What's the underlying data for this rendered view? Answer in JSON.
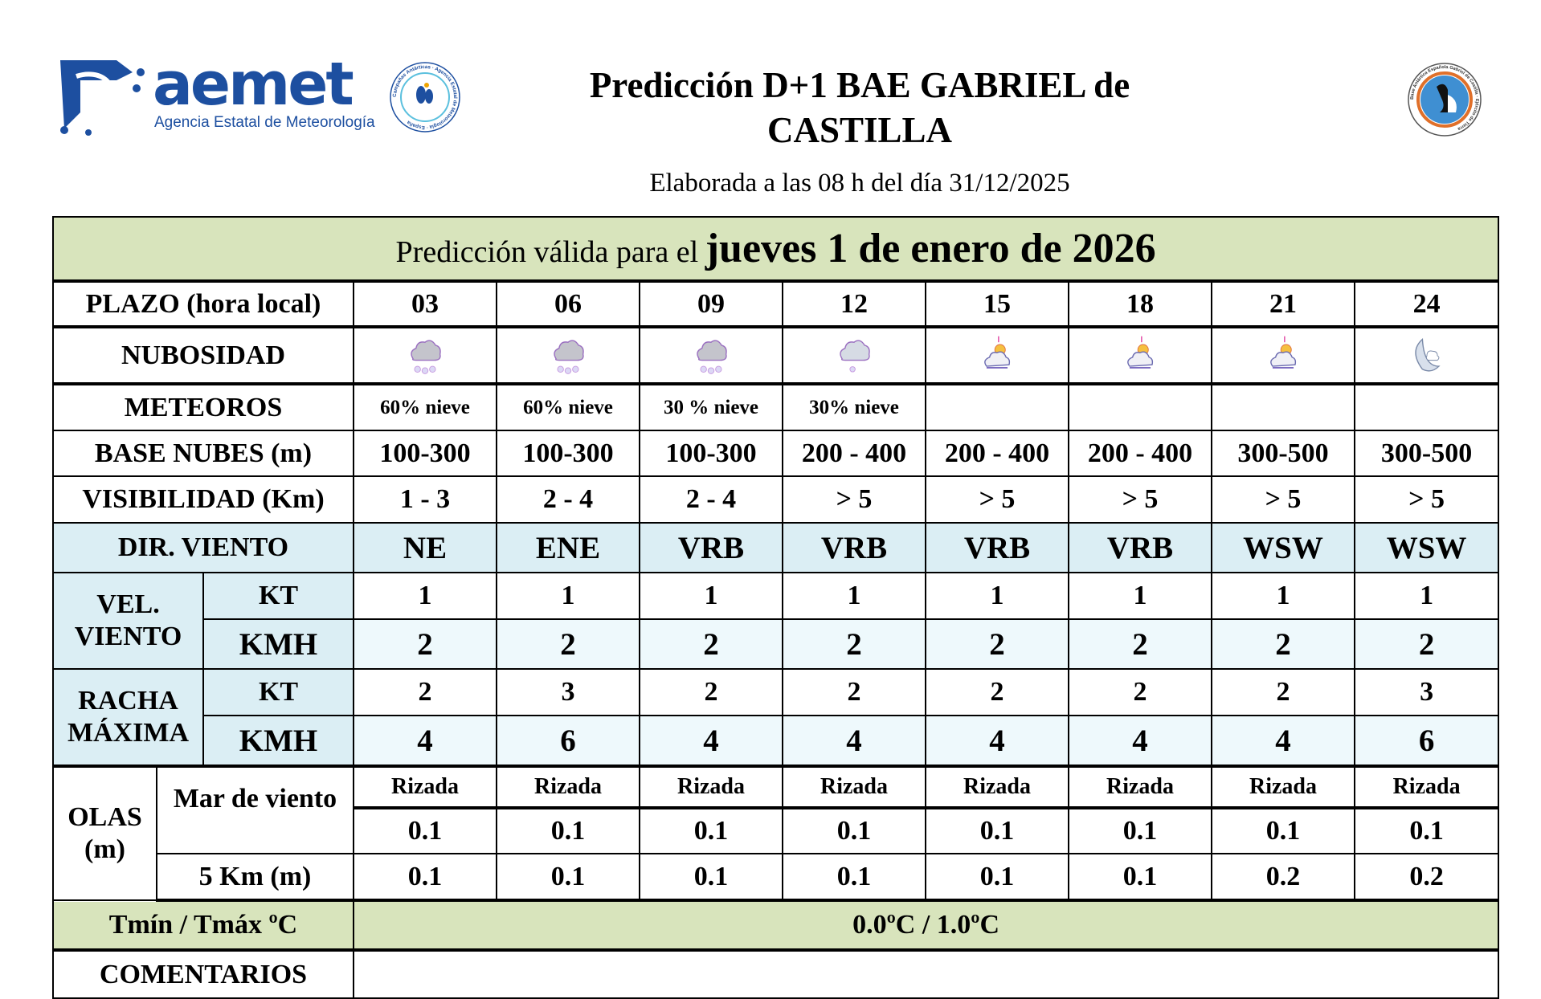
{
  "header": {
    "logo_word": "aemet",
    "logo_subtitle": "Agencia Estatal de Meteorología",
    "badge_left_text": "Campañas Antárticas · Agencia Estatal de Meteorología · España",
    "badge_right_text": "Base Antártica Española Gabriel de Castilla · Ejército de Tierra",
    "title": "Predicción D+1 BAE GABRIEL de CASTILLA",
    "subtitle": "Elaborada a las 08 h del día 31/12/2025"
  },
  "validity": {
    "prefix": "Predicción válida para el",
    "date": "jueves 1 de enero de 2026"
  },
  "colors": {
    "green": "#d8e4bc",
    "blue": "#dbeef4",
    "light_blue": "#eef9fc",
    "logo_blue": "#1d4fa0"
  },
  "table": {
    "plazo_label": "PLAZO (hora local)",
    "hours": [
      "03",
      "06",
      "09",
      "12",
      "15",
      "18",
      "21",
      "24"
    ],
    "nubosidad_label": "NUBOSIDAD",
    "nubosidad_icons": [
      "snow-cloud-icon",
      "snow-cloud-icon",
      "snow-cloud-icon",
      "light-snow-cloud-icon",
      "cloud-sun-icon",
      "cloud-sun-icon",
      "cloud-sun-icon",
      "moon-cloud-icon"
    ],
    "meteoros_label": "METEOROS",
    "meteoros": [
      "60% nieve",
      "60% nieve",
      "30 % nieve",
      "30% nieve",
      "",
      "",
      "",
      ""
    ],
    "base_label": "BASE NUBES (m)",
    "base": [
      "100-300",
      "100-300",
      "100-300",
      "200 - 400",
      "200 - 400",
      "200 - 400",
      "300-500",
      "300-500"
    ],
    "vis_label": "VISIBILIDAD (Km)",
    "vis": [
      "1 - 3",
      "2 - 4",
      "2 - 4",
      "> 5",
      "> 5",
      "> 5",
      "> 5",
      "> 5"
    ],
    "dir_label": "DIR. VIENTO",
    "dir": [
      "NE",
      "ENE",
      "VRB",
      "VRB",
      "VRB",
      "VRB",
      "WSW",
      "WSW"
    ],
    "vel_label": "VEL. VIENTO",
    "kt_label": "KT",
    "kmh_label": "KMH",
    "vel_kt": [
      "1",
      "1",
      "1",
      "1",
      "1",
      "1",
      "1",
      "1"
    ],
    "vel_kmh": [
      "2",
      "2",
      "2",
      "2",
      "2",
      "2",
      "2",
      "2"
    ],
    "racha_label": "RACHA MÁXIMA",
    "racha_kt": [
      "2",
      "3",
      "2",
      "2",
      "2",
      "2",
      "2",
      "3"
    ],
    "racha_kmh": [
      "4",
      "6",
      "4",
      "4",
      "4",
      "4",
      "4",
      "6"
    ],
    "olas_label": "OLAS (m)",
    "mar_label": "Mar de viento",
    "mar_state": [
      "Rizada",
      "Rizada",
      "Rizada",
      "Rizada",
      "Rizada",
      "Rizada",
      "Rizada",
      "Rizada"
    ],
    "mar_height": [
      "0.1",
      "0.1",
      "0.1",
      "0.1",
      "0.1",
      "0.1",
      "0.1",
      "0.1"
    ],
    "km5_label": "5 Km (m)",
    "km5": [
      "0.1",
      "0.1",
      "0.1",
      "0.1",
      "0.1",
      "0.1",
      "0.2",
      "0.2"
    ],
    "temp_label": "Tmín / Tmáx ºC",
    "temp_value": "0.0ºC / 1.0ºC",
    "comments_label": "COMENTARIOS",
    "comments_value": ""
  }
}
